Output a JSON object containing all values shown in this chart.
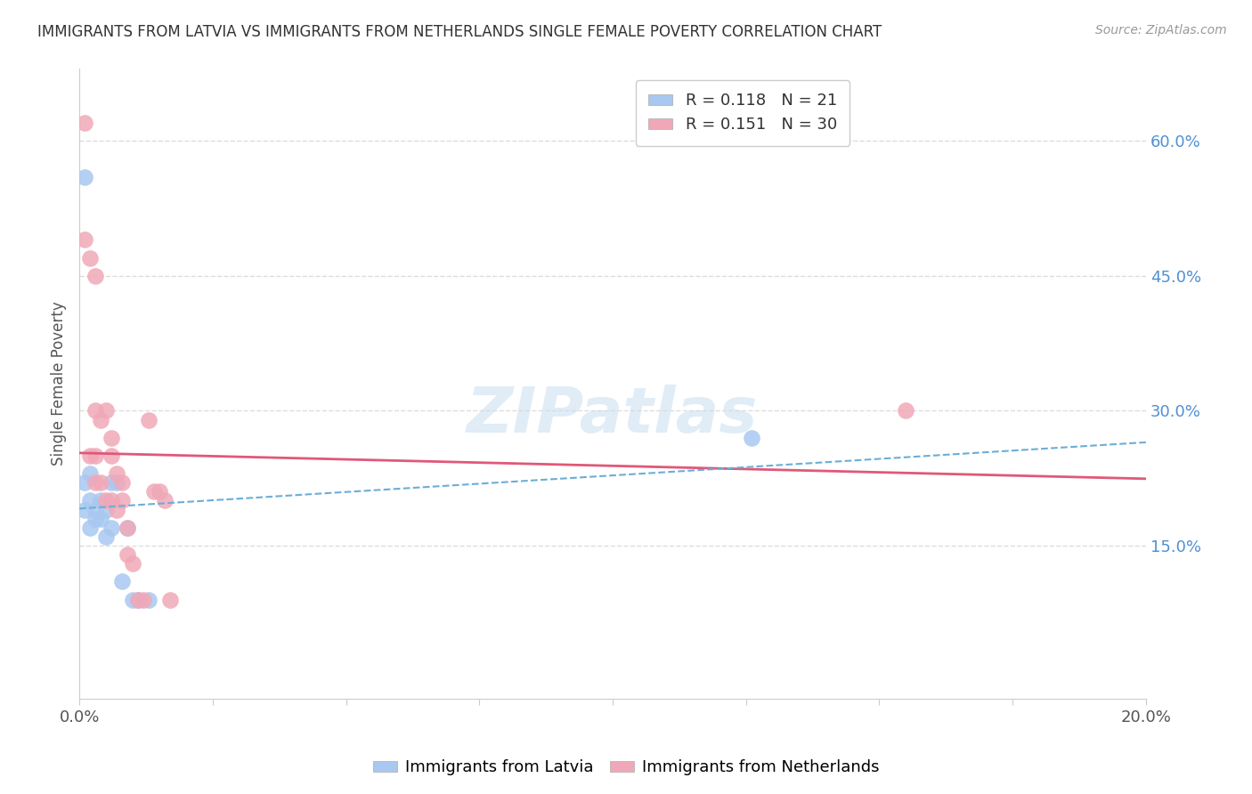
{
  "title": "IMMIGRANTS FROM LATVIA VS IMMIGRANTS FROM NETHERLANDS SINGLE FEMALE POVERTY CORRELATION CHART",
  "source": "Source: ZipAtlas.com",
  "ylabel": "Single Female Poverty",
  "legend_label1": "Immigrants from Latvia",
  "legend_label2": "Immigrants from Netherlands",
  "R1": 0.118,
  "N1": 21,
  "R2": 0.151,
  "N2": 30,
  "color1": "#a8c8f0",
  "color2": "#f0a8b8",
  "line_color1": "#6baed6",
  "line_color2": "#e05878",
  "xlim": [
    0.0,
    0.2
  ],
  "ylim": [
    -0.02,
    0.68
  ],
  "xtick_positions": [
    0.0,
    0.025,
    0.05,
    0.075,
    0.1,
    0.125,
    0.15,
    0.175,
    0.2
  ],
  "xtick_labels_show": {
    "0.0": "0.0%",
    "0.20": "20.0%"
  },
  "yticks_right": [
    0.15,
    0.3,
    0.45,
    0.6
  ],
  "grid_color": "#dddddd",
  "background_color": "#ffffff",
  "watermark": "ZIPatlas",
  "latvia_x": [
    0.001,
    0.001,
    0.001,
    0.002,
    0.002,
    0.002,
    0.003,
    0.003,
    0.004,
    0.004,
    0.005,
    0.005,
    0.006,
    0.006,
    0.007,
    0.008,
    0.009,
    0.01,
    0.011,
    0.013,
    0.126
  ],
  "latvia_y": [
    0.56,
    0.22,
    0.19,
    0.23,
    0.2,
    0.17,
    0.19,
    0.18,
    0.2,
    0.18,
    0.19,
    0.16,
    0.22,
    0.17,
    0.22,
    0.11,
    0.17,
    0.09,
    0.09,
    0.09,
    0.27
  ],
  "netherlands_x": [
    0.001,
    0.001,
    0.002,
    0.002,
    0.003,
    0.003,
    0.003,
    0.003,
    0.004,
    0.004,
    0.005,
    0.005,
    0.006,
    0.006,
    0.006,
    0.007,
    0.007,
    0.008,
    0.008,
    0.009,
    0.009,
    0.01,
    0.011,
    0.012,
    0.013,
    0.014,
    0.015,
    0.016,
    0.017,
    0.155
  ],
  "netherlands_y": [
    0.62,
    0.49,
    0.47,
    0.25,
    0.45,
    0.3,
    0.25,
    0.22,
    0.29,
    0.22,
    0.3,
    0.2,
    0.27,
    0.25,
    0.2,
    0.23,
    0.19,
    0.22,
    0.2,
    0.17,
    0.14,
    0.13,
    0.09,
    0.09,
    0.29,
    0.21,
    0.21,
    0.2,
    0.09,
    0.3
  ]
}
